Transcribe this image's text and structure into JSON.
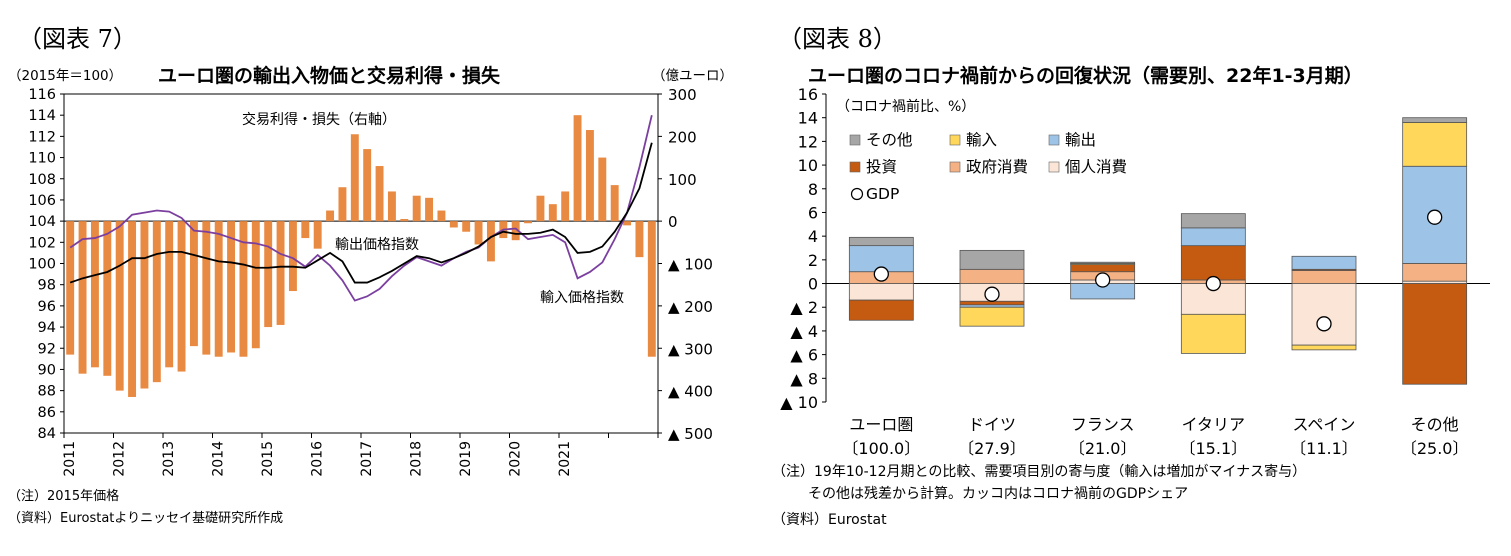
{
  "colors": {
    "bar": "#E98A42",
    "export_line": "#000000",
    "import_line": "#7B3FA0",
    "other": "#A6A6A6",
    "imports": "#FFD75A",
    "exports": "#9DC3E6",
    "investment": "#C55A11",
    "gov": "#F4B183",
    "private": "#FBE5D6",
    "export_label": "#1F3864",
    "import_label": "#7030A0",
    "trade_label": "#C55A11"
  },
  "left": {
    "fig_label": "（図表 7）",
    "title": "ユーロ圏の輸出入物価と交易利得・損失",
    "left_unit": "（2015年＝100）",
    "right_unit": "（億ユーロ）",
    "note": "（注）2015年価格",
    "source": "（資料）Eurostatよりニッセイ基礎研究所作成",
    "chart_data": {
      "type": "bar+line",
      "y_left": {
        "min": 84,
        "max": 116,
        "step": 2
      },
      "y_left_ticks": [
        "84",
        "86",
        "88",
        "90",
        "92",
        "94",
        "96",
        "98",
        "100",
        "102",
        "104",
        "106",
        "108",
        "110",
        "112",
        "114",
        "116"
      ],
      "y_right": {
        "min": -500,
        "max": 300
      },
      "y_right_ticks": [
        "300",
        "200",
        "100",
        "0",
        "▲ 100",
        "▲ 200",
        "▲ 300",
        "▲ 400",
        "▲ 500"
      ],
      "x_labels": [
        "2011",
        "2012",
        "2013",
        "2014",
        "2015",
        "2016",
        "2017",
        "2018",
        "2019",
        "2020",
        "2021"
      ],
      "series_bar_name": "交易利得・損失（右軸）",
      "series_bar": [
        -315,
        -360,
        -345,
        -365,
        -400,
        -415,
        -395,
        -380,
        -345,
        -355,
        -295,
        -315,
        -320,
        -310,
        -320,
        -300,
        -250,
        -245,
        -165,
        -40,
        -65,
        25,
        80,
        205,
        170,
        130,
        70,
        5,
        60,
        55,
        25,
        -15,
        -25,
        -55,
        -95,
        -40,
        -45,
        -5,
        60,
        40,
        70,
        250,
        215,
        150,
        85,
        -10,
        -85,
        -320
      ],
      "series_line1_name": "輸出価格指数",
      "series_line1": [
        98.2,
        98.6,
        98.9,
        99.2,
        99.8,
        100.5,
        100.5,
        100.9,
        101.1,
        101.1,
        100.8,
        100.5,
        100.2,
        100.1,
        99.9,
        99.6,
        99.6,
        99.7,
        99.7,
        99.6,
        100.3,
        101.0,
        100.2,
        98.2,
        98.2,
        98.7,
        99.3,
        100.0,
        100.7,
        100.5,
        100.1,
        100.5,
        101.0,
        101.6,
        102.5,
        103.0,
        102.8,
        102.8,
        102.9,
        103.2,
        102.5,
        101.0,
        101.1,
        101.6,
        103.0,
        104.8,
        107.1,
        111.4
      ],
      "series_line2_name": "輸入価格指数",
      "series_line2": [
        101.5,
        102.3,
        102.4,
        102.8,
        103.5,
        104.6,
        104.8,
        105.0,
        104.9,
        104.3,
        103.1,
        103.0,
        102.8,
        102.4,
        102.0,
        101.9,
        101.6,
        100.9,
        100.5,
        99.7,
        100.8,
        99.8,
        98.4,
        96.5,
        96.9,
        97.6,
        98.8,
        99.8,
        100.6,
        100.2,
        99.8,
        100.5,
        101.1,
        101.5,
        102.5,
        103.2,
        103.3,
        102.3,
        102.5,
        102.7,
        102.0,
        98.6,
        99.2,
        100.1,
        102.3,
        104.8,
        109.1,
        114.0
      ]
    }
  },
  "right": {
    "fig_label": "（図表 8）",
    "title": "ユーロ圏のコロナ禍前からの回復状況（需要別、22年1-3月期）",
    "unit": "（コロナ禍前比、%）",
    "note1": "（注）19年10-12月期との比較、需要項目別の寄与度（輸入は増加がマイナス寄与）",
    "note2": "その他は残差から計算。カッコ内はコロナ禍前のGDPシェア",
    "source": "（資料）Eurostat",
    "legend": [
      "その他",
      "輸入",
      "輸出",
      "投資",
      "政府消費",
      "個人消費",
      "GDP"
    ],
    "chart_data": {
      "type": "stacked-bar+scatter",
      "ylim": [
        -10,
        16
      ],
      "y_ticks": [
        "▲ 10",
        "▲ 8",
        "▲ 6",
        "▲ 4",
        "▲ 2",
        "0",
        "2",
        "4",
        "6",
        "8",
        "10",
        "12",
        "14",
        "16"
      ],
      "categories": [
        "ユーロ圏",
        "ドイツ",
        "フランス",
        "イタリア",
        "スペイン",
        "その他"
      ],
      "shares": [
        "〔100.0〕",
        "〔27.9〕",
        "〔21.0〕",
        "〔15.1〕",
        "〔11.1〕",
        "〔25.0〕"
      ],
      "series": [
        {
          "name": "個人消費",
          "values": [
            -1.4,
            -1.5,
            0.3,
            -2.6,
            -5.2,
            0.2
          ]
        },
        {
          "name": "政府消費",
          "values": [
            1.0,
            1.2,
            0.7,
            0.3,
            1.1,
            1.5
          ]
        },
        {
          "name": "投資",
          "values": [
            -1.7,
            -0.3,
            0.6,
            2.9,
            0.1,
            -8.5
          ]
        },
        {
          "name": "輸出",
          "values": [
            2.2,
            -0.2,
            -1.3,
            1.5,
            1.1,
            8.2
          ]
        },
        {
          "name": "輸入",
          "values": [
            0.0,
            -1.6,
            0.1,
            -3.3,
            -0.4,
            3.7
          ]
        },
        {
          "name": "その他",
          "values": [
            0.7,
            1.6,
            0.1,
            1.2,
            0.0,
            0.4
          ]
        }
      ],
      "gdp": [
        0.8,
        -0.9,
        0.3,
        0.0,
        -3.4,
        5.6
      ]
    }
  }
}
